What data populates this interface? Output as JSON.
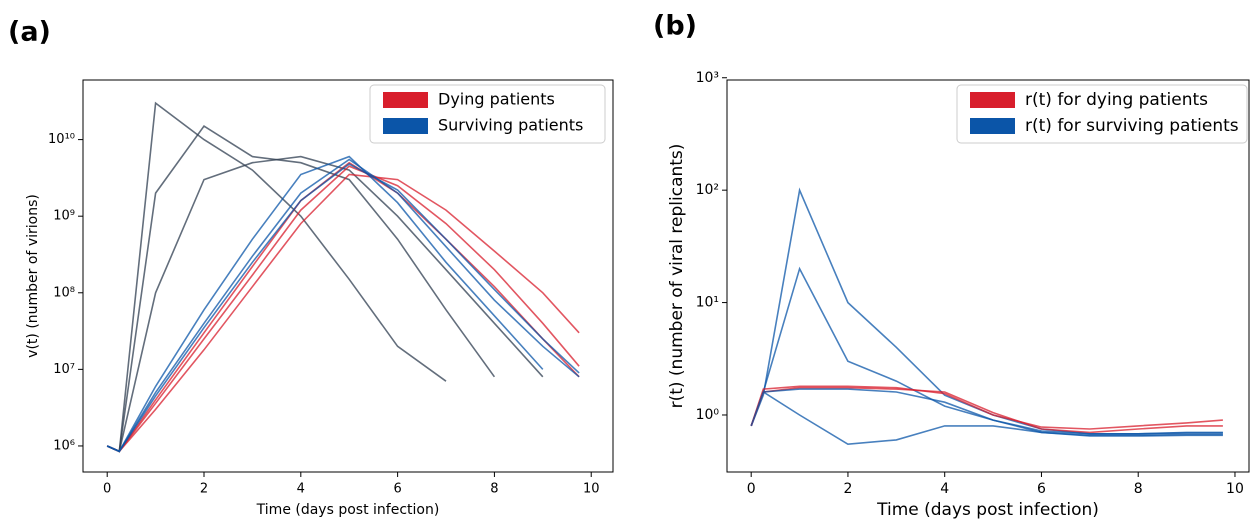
{
  "chart_data": [
    {
      "type": "line",
      "title": "(a)",
      "xlabel": "Time (days post infection)",
      "ylabel": "v(t) (number of virions)",
      "yscale": "log",
      "legend": "upper right",
      "grid": false,
      "xlim": [
        -0.5,
        10.45
      ],
      "xticks": [
        0,
        2,
        4,
        6,
        8,
        10
      ],
      "ylim": [
        457000,
        60000000000
      ],
      "yticks": [
        {
          "value": 1000000,
          "label": "10⁶"
        },
        {
          "value": 10000000,
          "label": "10⁷"
        },
        {
          "value": 100000000,
          "label": "10⁸"
        },
        {
          "value": 1000000000,
          "label": "10⁹"
        },
        {
          "value": 10000000000,
          "label": "10¹⁰"
        }
      ],
      "x": [
        0,
        0.25,
        1,
        2,
        3,
        4,
        5,
        6,
        7,
        8,
        9,
        9.75
      ],
      "series": [
        {
          "color": "#2f3e50",
          "values": [
            1000000,
            850000,
            30000000000,
            10000000000,
            4000000000,
            1000000000,
            150000000,
            20000000,
            7000000,
            null,
            null,
            null
          ]
        },
        {
          "color": "#2f3e50",
          "values": [
            1000000,
            850000,
            2000000000,
            15000000000,
            6000000000,
            5000000000,
            3000000000,
            500000000,
            60000000,
            8000000,
            null,
            null
          ]
        },
        {
          "color": "#2f3e50",
          "values": [
            1000000,
            850000,
            100000000,
            3000000000,
            5000000000,
            6000000000,
            4000000000,
            1000000000,
            200000000,
            40000000,
            8000000,
            null
          ]
        },
        {
          "name": "Dying patients",
          "color": "#d81e2c",
          "values": [
            1000000,
            850000,
            3600000,
            25000000,
            170000000,
            1200000000,
            4500000000,
            2500000000,
            800000000,
            200000000,
            40000000,
            11000000
          ]
        },
        {
          "color": "#d81e2c",
          "values": [
            1000000,
            850000,
            3000000,
            18000000,
            120000000,
            800000000,
            3500000000,
            3000000000,
            1200000000,
            350000000,
            100000000,
            30000000
          ]
        },
        {
          "color": "#d81e2c",
          "values": [
            1000000,
            850000,
            4000000,
            30000000,
            220000000,
            1600000000,
            5000000000,
            2000000000,
            500000000,
            120000000,
            25000000,
            8000000
          ]
        },
        {
          "name": "Surviving patients",
          "color": "#0b55a8",
          "values": [
            1000000,
            850000,
            5000000,
            40000000,
            300000000,
            2000000000,
            5500000000,
            2000000000,
            400000000,
            80000000,
            20000000,
            8000000
          ]
        },
        {
          "color": "#0b55a8",
          "values": [
            1000000,
            850000,
            6000000,
            60000000,
            500000000,
            3500000000,
            6000000000,
            1500000000,
            250000000,
            50000000,
            10000000,
            null
          ]
        },
        {
          "color": "#0b55a8",
          "values": [
            1000000,
            850000,
            4500000,
            35000000,
            250000000,
            1600000000,
            4800000000,
            2200000000,
            500000000,
            110000000,
            25000000,
            9000000
          ]
        }
      ]
    },
    {
      "type": "line",
      "title": "(b)",
      "xlabel": "Time (days post infection)",
      "ylabel": "r(t) (number of viral replicants)",
      "yscale": "log",
      "legend": "upper right",
      "grid": false,
      "xlim": [
        -0.5,
        10.29
      ],
      "xticks": [
        0,
        2,
        4,
        6,
        8,
        10
      ],
      "ylim": [
        0.311,
        955
      ],
      "yticks": [
        {
          "value": 1,
          "label": "10⁰"
        },
        {
          "value": 10,
          "label": "10¹"
        },
        {
          "value": 100,
          "label": "10²"
        },
        {
          "value": 1000,
          "label": "10³"
        }
      ],
      "x": [
        0,
        0.25,
        1,
        2,
        3,
        4,
        5,
        6,
        7,
        8,
        9,
        9.75
      ],
      "series": [
        {
          "color": "#0b55a8",
          "values": [
            0.8,
            1.5,
            100,
            10,
            4,
            1.5,
            1.0,
            0.75,
            0.68,
            0.68,
            0.7,
            0.7
          ]
        },
        {
          "color": "#0b55a8",
          "values": [
            0.8,
            1.6,
            1.0,
            0.55,
            0.6,
            0.8,
            0.8,
            0.7,
            0.65,
            0.65,
            0.66,
            0.66
          ]
        },
        {
          "color": "#0b55a8",
          "values": [
            0.8,
            1.6,
            20,
            3,
            2,
            1.2,
            0.9,
            0.7,
            0.66,
            0.66,
            0.67,
            0.67
          ]
        },
        {
          "name": "r(t) for dying patients",
          "color": "#d81e2c",
          "values": [
            0.8,
            1.6,
            1.75,
            1.75,
            1.7,
            1.6,
            1.05,
            0.75,
            0.7,
            0.75,
            0.8,
            0.8
          ]
        },
        {
          "color": "#d81e2c",
          "values": [
            0.8,
            1.7,
            1.8,
            1.8,
            1.75,
            1.55,
            1.0,
            0.78,
            0.75,
            0.8,
            0.85,
            0.9
          ]
        },
        {
          "name": "r(t) for surviving patients",
          "color": "#0b55a8",
          "values": [
            0.8,
            1.6,
            1.7,
            1.7,
            1.6,
            1.3,
            0.9,
            0.72,
            0.68,
            0.68,
            0.69,
            0.69
          ]
        }
      ]
    }
  ]
}
